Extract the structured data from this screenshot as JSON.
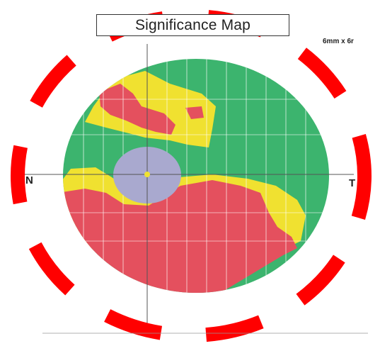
{
  "title": "Significance Map",
  "scan_size": "6mm x 6r",
  "orientation": {
    "nasal": "N",
    "temporal": "T"
  },
  "legend_colors": {
    "within_normal": "#3cb46e",
    "borderline": "#f0e130",
    "outside_normal": "#e4505e",
    "disc_area": "#a9a9cf",
    "annotation_ring": "#ff0000"
  }
}
